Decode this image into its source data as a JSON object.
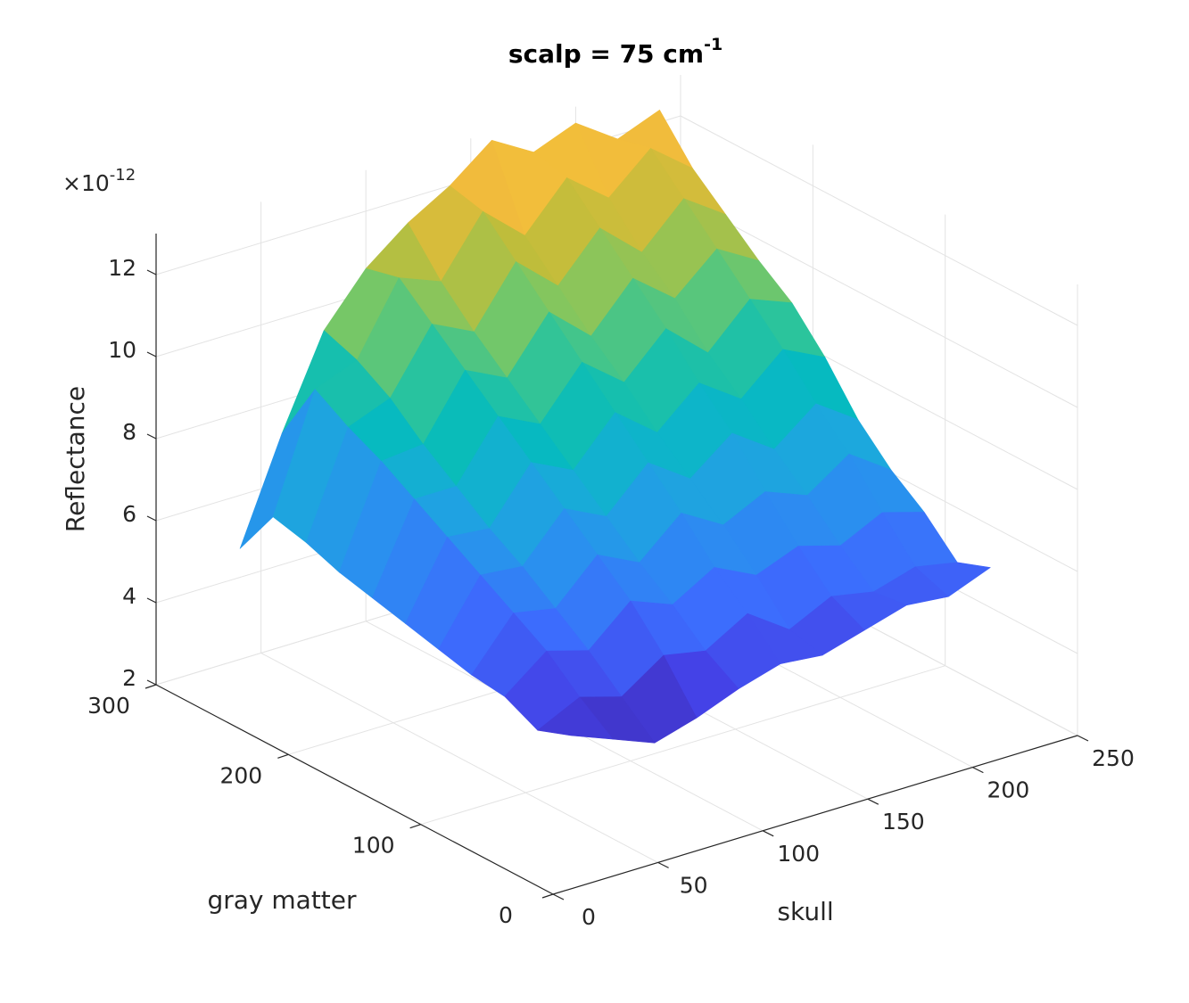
{
  "chart_data": {
    "type": "surface",
    "title": "scalp = 75 cm",
    "title_sup": "-1",
    "xlabel": "skull",
    "ylabel": "gray matter",
    "zlabel": "Reflectance",
    "z_exponent": "×10",
    "z_exponent_sup": "-12",
    "x": [
      40,
      60,
      80,
      100,
      120,
      140,
      160,
      180,
      200,
      220,
      240
    ],
    "y": [
      50,
      75,
      100,
      125,
      150,
      175,
      200,
      225,
      250,
      275,
      300
    ],
    "z": [
      [
        4.4,
        4.0,
        3.6,
        3.9,
        4.3,
        4.6,
        4.5,
        4.8,
        5.1,
        5.0,
        5.4
      ],
      [
        4.1,
        4.6,
        4.3,
        5.0,
        4.8,
        5.4,
        4.7,
        5.2,
        5.0,
        5.3,
        5.1
      ],
      [
        4.5,
        5.3,
        5.0,
        5.9,
        5.5,
        6.1,
        5.6,
        6.0,
        5.7,
        6.2,
        5.9
      ],
      [
        4.6,
        5.8,
        5.6,
        6.6,
        6.1,
        7.0,
        6.4,
        6.9,
        6.5,
        7.2,
        6.5
      ],
      [
        4.8,
        6.3,
        6.2,
        7.3,
        6.8,
        7.8,
        7.1,
        7.9,
        7.2,
        8.0,
        7.3
      ],
      [
        5.0,
        6.8,
        6.7,
        8.0,
        7.5,
        8.6,
        7.8,
        8.7,
        8.0,
        8.9,
        8.4
      ],
      [
        5.2,
        7.3,
        7.3,
        8.7,
        8.2,
        9.4,
        8.6,
        9.6,
        8.7,
        9.7,
        9.3
      ],
      [
        5.4,
        7.8,
        7.9,
        9.4,
        8.9,
        10.2,
        9.3,
        10.4,
        9.6,
        10.5,
        9.9
      ],
      [
        5.7,
        8.2,
        8.6,
        10.1,
        9.6,
        11.0,
        10.1,
        11.2,
        10.3,
        11.3,
        10.6
      ],
      [
        5.9,
        8.7,
        9.1,
        10.8,
        10.4,
        11.8,
        10.9,
        12.0,
        11.2,
        12.1,
        11.3
      ],
      [
        4.7,
        7.2,
        9.4,
        10.6,
        11.4,
        12.0,
        12.8,
        12.2,
        12.6,
        11.9,
        12.3
      ]
    ],
    "xlim": [
      0,
      250
    ],
    "xticks": [
      0,
      50,
      100,
      150,
      200,
      250
    ],
    "ylim": [
      0,
      300
    ],
    "yticks": [
      0,
      100,
      200,
      300
    ],
    "zlim": [
      2,
      13
    ],
    "zticks": [
      2,
      4,
      6,
      8,
      10,
      12
    ],
    "grid": true,
    "colormap": [
      "#3e26a8",
      "#4443e8",
      "#3c6dfd",
      "#2b8ef0",
      "#1ba9dc",
      "#05bbbe",
      "#2dc49a",
      "#7cc763",
      "#c0bd3b",
      "#f1bb3c",
      "#fcd42f"
    ]
  }
}
